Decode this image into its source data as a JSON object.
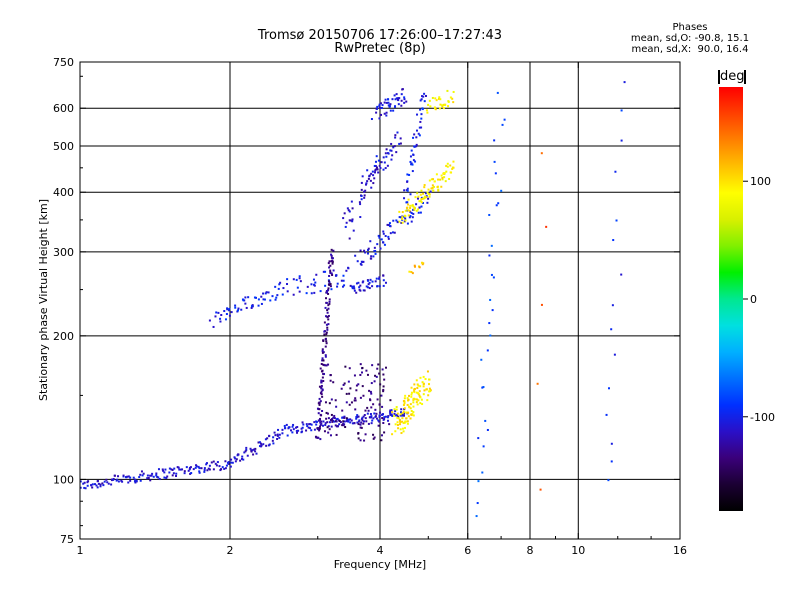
{
  "header": {
    "title_line1": "Tromsø 20150706 17:26:00–17:27:43",
    "title_line2": "RwPretec (8p)"
  },
  "stats": {
    "heading": "Phases",
    "line_o": "mean, sd,O: -90.8, 15.1",
    "line_x": "mean, sd,X:  90.0, 16.4"
  },
  "colorbar": {
    "unit": "deg",
    "ticks": [
      "100",
      "0",
      "-100"
    ],
    "tick_values": [
      100,
      0,
      -100
    ],
    "range": [
      -180,
      180
    ],
    "colors": [
      "#000000",
      "#1b0033",
      "#3a007a",
      "#2a10c8",
      "#0030ff",
      "#0070ff",
      "#00b0ff",
      "#00e0e0",
      "#00e890",
      "#00f000",
      "#80f000",
      "#d8f000",
      "#ffff00",
      "#ffc000",
      "#ff8000",
      "#ff4000",
      "#ff0000"
    ]
  },
  "chart_data": {
    "type": "scatter",
    "title": "Tromsø 20150706 17:26:00–17:27:43",
    "subtitle": "RwPretec (8p)",
    "xlabel": "Frequency [MHz]",
    "ylabel": "Stationary phase Virtual Height [km]",
    "x_scale": "log",
    "y_scale": "log",
    "xlim": [
      1,
      16
    ],
    "ylim": [
      75,
      750
    ],
    "x_ticks": [
      1,
      2,
      4,
      6,
      8,
      10,
      16
    ],
    "x_tick_labels": [
      "1",
      "2",
      "4",
      "6",
      "8",
      "10",
      "16"
    ],
    "y_ticks": [
      75,
      100,
      200,
      300,
      400,
      500,
      600,
      750
    ],
    "y_tick_labels": [
      "75",
      "100",
      "200",
      "300",
      "400",
      "500",
      "600",
      "750"
    ],
    "x_gridlines": [
      2,
      4,
      6,
      8,
      10
    ],
    "y_gridlines": [
      100,
      200,
      300,
      400,
      500,
      600
    ],
    "grid": true,
    "color_scale": "phase [deg]",
    "series": [
      {
        "segments": [
          {
            "x": [
              1.0,
              2.0
            ],
            "y": [
              97,
              108
            ],
            "phase": -110,
            "n": 140,
            "spread": 0.02
          },
          {
            "x": [
              2.0,
              2.6
            ],
            "y": [
              108,
              127
            ],
            "phase": -110,
            "n": 60,
            "spread": 0.02
          },
          {
            "x": [
              2.6,
              3.2
            ],
            "y": [
              127,
              132
            ],
            "phase": -110,
            "n": 50,
            "spread": 0.02
          },
          {
            "x": [
              3.2,
              3.8
            ],
            "y": [
              132,
              134
            ],
            "phase": -110,
            "n": 50,
            "spread": 0.02
          },
          {
            "x": [
              3.8,
              4.5
            ],
            "y": [
              134,
              138
            ],
            "phase": -110,
            "n": 50,
            "spread": 0.02
          },
          {
            "x": [
              1.85,
              2.6
            ],
            "y": [
              215,
              255
            ],
            "phase": -100,
            "n": 60,
            "spread": 0.03
          },
          {
            "x": [
              2.7,
              3.5
            ],
            "y": [
              255,
              265
            ],
            "phase": -100,
            "n": 40,
            "spread": 0.04
          },
          {
            "x": [
              3.0,
              3.2
            ],
            "y": [
              120,
              305
            ],
            "phase": -130,
            "n": 130,
            "spread": 0.02
          },
          {
            "x": [
              3.1,
              4.2
            ],
            "y": [
              120,
              175
            ],
            "phase": -135,
            "n": 120,
            "spread": 0.0
          },
          {
            "x": [
              3.5,
              4.1
            ],
            "y": [
              250,
              262
            ],
            "phase": -110,
            "n": 40,
            "spread": 0.02
          },
          {
            "x": [
              3.6,
              5.0
            ],
            "y": [
              285,
              390
            ],
            "phase": -105,
            "n": 80,
            "spread": 0.03
          },
          {
            "x": [
              3.4,
              3.9
            ],
            "y": [
              330,
              450
            ],
            "phase": -110,
            "n": 40,
            "spread": 0.05
          },
          {
            "x": [
              3.8,
              4.4
            ],
            "y": [
              420,
              520
            ],
            "phase": -110,
            "n": 40,
            "spread": 0.03
          },
          {
            "x": [
              3.9,
              4.5
            ],
            "y": [
              580,
              640
            ],
            "phase": -105,
            "n": 50,
            "spread": 0.03
          },
          {
            "x": [
              4.5,
              4.9
            ],
            "y": [
              380,
              650
            ],
            "phase": -100,
            "n": 50,
            "spread": 0.03
          },
          {
            "x": [
              4.3,
              5.0
            ],
            "y": [
              130,
              160
            ],
            "phase": 95,
            "n": 120,
            "spread": 0.05
          },
          {
            "x": [
              4.4,
              5.6
            ],
            "y": [
              355,
              450
            ],
            "phase": 92,
            "n": 90,
            "spread": 0.03
          },
          {
            "x": [
              5.0,
              5.6
            ],
            "y": [
              600,
              640
            ],
            "phase": 90,
            "n": 30,
            "spread": 0.03
          },
          {
            "x": [
              4.6,
              4.9
            ],
            "y": [
              270,
              290
            ],
            "phase": 110,
            "n": 10,
            "spread": 0.02
          },
          {
            "x": [
              6.3,
              7.0
            ],
            "y": [
              85,
              640
            ],
            "phase": -80,
            "n": 30,
            "spread": 0.05
          },
          {
            "x": [
              8.4,
              8.6
            ],
            "y": [
              100,
              500
            ],
            "phase": 150,
            "n": 5,
            "spread": 0.05
          },
          {
            "x": [
              11.5,
              12.2
            ],
            "y": [
              95,
              640
            ],
            "phase": -95,
            "n": 15,
            "spread": 0.05
          }
        ]
      }
    ]
  }
}
